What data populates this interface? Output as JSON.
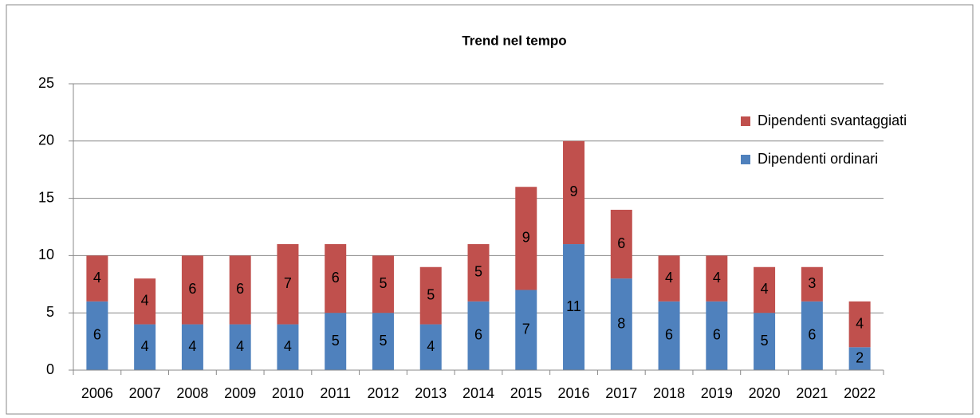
{
  "chart_data": {
    "type": "stacked_bar",
    "title": "Trend nel tempo",
    "categories": [
      "2006",
      "2007",
      "2008",
      "2009",
      "2010",
      "2011",
      "2012",
      "2013",
      "2014",
      "2015",
      "2016",
      "2017",
      "2018",
      "2019",
      "2020",
      "2021",
      "2022"
    ],
    "series": [
      {
        "name": "Dipendenti ordinari",
        "color": "#4f81bd",
        "values": [
          6,
          4,
          4,
          4,
          4,
          5,
          5,
          4,
          6,
          7,
          11,
          8,
          6,
          6,
          5,
          6,
          2
        ]
      },
      {
        "name": "Dipendenti svantaggiati",
        "color": "#c0504d",
        "values": [
          4,
          4,
          6,
          6,
          7,
          6,
          5,
          5,
          5,
          9,
          9,
          6,
          4,
          4,
          4,
          3,
          4
        ]
      }
    ],
    "ylim": [
      0,
      25
    ],
    "yticks": [
      0,
      5,
      10,
      15,
      20,
      25
    ],
    "grid": true,
    "legend": "right"
  }
}
